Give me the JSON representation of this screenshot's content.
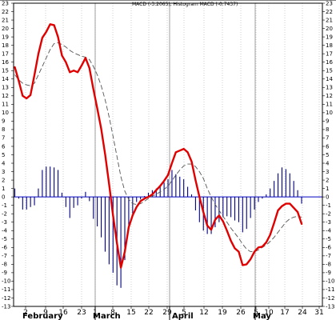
{
  "chart_data": {
    "type": "line",
    "title": "MACD (-3.2065), Histogram MACD (-0.7437)",
    "ylim": [
      -13,
      23
    ],
    "y_ticks": [
      23,
      22,
      21,
      20,
      19,
      18,
      17,
      16,
      15,
      14,
      13,
      12,
      11,
      10,
      9,
      8,
      7,
      6,
      5,
      4,
      3,
      2,
      1,
      0,
      -1,
      -2,
      -3,
      -4,
      -5,
      -6,
      -7,
      -8,
      -9,
      -10,
      -11,
      -12,
      -13
    ],
    "x_tick_labels": [
      "2",
      "9",
      "16",
      "23",
      "1",
      "8",
      "15",
      "22",
      "29",
      "5",
      "12",
      "19",
      "26",
      "5",
      "10",
      "17",
      "24",
      "31"
    ],
    "month_labels": [
      "February",
      "March",
      "April",
      "May"
    ],
    "grid": true,
    "colors": {
      "macd": "#e00000",
      "signal": "#555555",
      "histogram": "#000080",
      "zero_line": "#0000c0",
      "grid": "#b0b0b0"
    },
    "series": [
      {
        "key": "macd",
        "style": "thick-red",
        "values": [
          15.4,
          13.8,
          12.0,
          11.7,
          12.1,
          14.5,
          17.0,
          18.9,
          19.6,
          20.5,
          20.4,
          19.0,
          16.8,
          16.0,
          14.8,
          15.0,
          14.8,
          15.6,
          16.5,
          15.3,
          12.8,
          10.5,
          8.1,
          5.0,
          1.5,
          -2.2,
          -5.5,
          -8.4,
          -6.5,
          -3.6,
          -2.2,
          -1.2,
          -0.5,
          -0.2,
          0.0,
          0.3,
          0.8,
          1.3,
          1.9,
          2.6,
          4.0,
          5.3,
          5.5,
          5.7,
          5.3,
          4.2,
          2.0,
          0.0,
          -1.8,
          -3.4,
          -3.9,
          -2.7,
          -2.2,
          -2.9,
          -4.0,
          -5.2,
          -6.1,
          -6.5,
          -8.1,
          -8.0,
          -7.4,
          -6.5,
          -6.0,
          -5.9,
          -5.4,
          -4.5,
          -3.1,
          -1.6,
          -1.1,
          -0.8,
          -0.8,
          -1.3,
          -1.8,
          -3.2
        ]
      },
      {
        "key": "signal",
        "style": "dashed-grey",
        "values": [
          14.5,
          13.9,
          13.5,
          13.3,
          13.2,
          13.5,
          14.5,
          15.5,
          16.5,
          17.5,
          18.2,
          18.3,
          18.1,
          17.8,
          17.4,
          17.1,
          16.9,
          16.7,
          16.6,
          16.3,
          15.5,
          14.5,
          13.2,
          11.5,
          9.5,
          7.2,
          4.8,
          2.4,
          0.7,
          -0.3,
          -0.8,
          -0.9,
          -0.8,
          -0.5,
          -0.2,
          0.1,
          0.3,
          0.6,
          0.9,
          1.3,
          1.9,
          2.6,
          3.2,
          3.7,
          3.9,
          3.9,
          3.6,
          3.0,
          2.2,
          1.0,
          0.0,
          -0.9,
          -1.6,
          -2.3,
          -3.0,
          -3.7,
          -4.3,
          -4.9,
          -5.6,
          -6.2,
          -6.5,
          -6.5,
          -6.3,
          -6.0,
          -5.7,
          -5.3,
          -4.8,
          -4.2,
          -3.6,
          -3.0,
          -2.6,
          -2.4,
          -2.3,
          -2.4
        ]
      },
      {
        "key": "histogram",
        "style": "thin-navy-bars",
        "values": [
          1.0,
          -0.2,
          -1.5,
          -1.5,
          -1.2,
          -1.0,
          1.0,
          3.2,
          3.6,
          3.6,
          3.5,
          3.2,
          0.5,
          -1.2,
          -2.5,
          -1.3,
          -1.0,
          -0.2,
          0.6,
          -0.5,
          -2.6,
          -3.5,
          -4.8,
          -6.5,
          -8.0,
          -9.0,
          -10.5,
          -10.8,
          -7.5,
          -4.0,
          -2.0,
          -0.6,
          -0.3,
          0.1,
          0.5,
          0.8,
          1.0,
          1.3,
          1.7,
          2.1,
          3.2,
          2.7,
          2.4,
          2.1,
          1.2,
          0.3,
          -1.6,
          -3.0,
          -4.0,
          -4.4,
          -4.4,
          -3.6,
          -3.0,
          -2.4,
          -2.3,
          -2.4,
          -2.8,
          -3.0,
          -4.2,
          -3.8,
          -2.5,
          -1.5,
          -0.6,
          -0.2,
          0.3,
          1.0,
          1.9,
          2.8,
          3.5,
          3.3,
          2.8,
          1.9,
          0.8,
          -0.8
        ]
      }
    ]
  }
}
